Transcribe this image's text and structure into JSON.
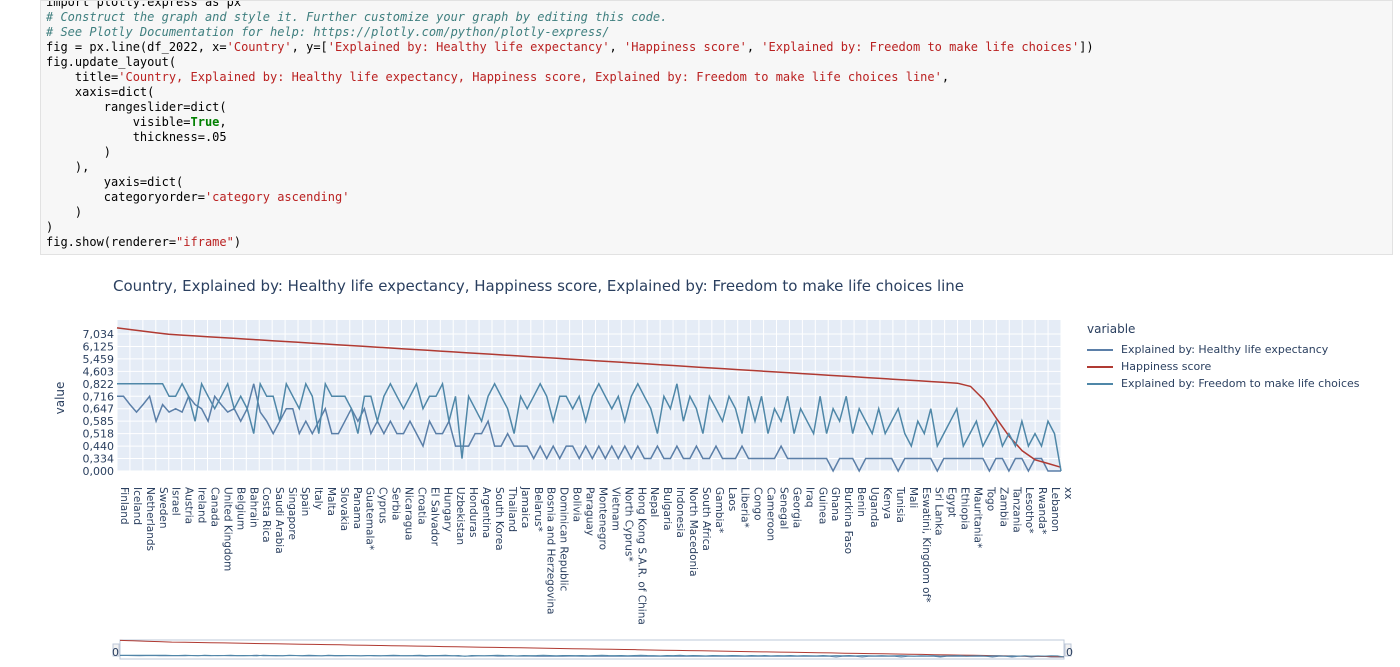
{
  "code_cell": {
    "lines": [
      [
        {
          "cls": "",
          "text": "import plotly.express as px"
        }
      ],
      [
        {
          "cls": "c-com",
          "text": "# Construct the graph and style it. Further customize your graph by editing this code."
        }
      ],
      [
        {
          "cls": "c-com",
          "text": "# See Plotly Documentation for help: https://plotly.com/python/plotly-express/"
        }
      ],
      [
        {
          "cls": "",
          "text": "fig = px.line(df_2022, x="
        },
        {
          "cls": "c-str",
          "text": "'Country'"
        },
        {
          "cls": "",
          "text": ", y=["
        },
        {
          "cls": "c-str",
          "text": "'Explained by: Healthy life expectancy'"
        },
        {
          "cls": "",
          "text": ", "
        },
        {
          "cls": "c-str",
          "text": "'Happiness score'"
        },
        {
          "cls": "",
          "text": ", "
        },
        {
          "cls": "c-str",
          "text": "'Explained by: Freedom to make life choices'"
        },
        {
          "cls": "",
          "text": "])"
        }
      ],
      [
        {
          "cls": "",
          "text": "fig.update_layout("
        }
      ],
      [
        {
          "cls": "",
          "text": "    title="
        },
        {
          "cls": "c-str",
          "text": "'Country, Explained by: Healthy life expectancy, Happiness score, Explained by: Freedom to make life choices line'"
        },
        {
          "cls": "",
          "text": ","
        }
      ],
      [
        {
          "cls": "",
          "text": "    xaxis=dict("
        }
      ],
      [
        {
          "cls": "",
          "text": "        rangeslider=dict("
        }
      ],
      [
        {
          "cls": "",
          "text": "            visible="
        },
        {
          "cls": "c-kw",
          "text": "True"
        },
        {
          "cls": "",
          "text": ","
        }
      ],
      [
        {
          "cls": "",
          "text": "            thickness=.05"
        }
      ],
      [
        {
          "cls": "",
          "text": "        )"
        }
      ],
      [
        {
          "cls": "",
          "text": "    ),"
        }
      ],
      [
        {
          "cls": "",
          "text": "        yaxis=dict("
        }
      ],
      [
        {
          "cls": "",
          "text": "        categoryorder="
        },
        {
          "cls": "c-str",
          "text": "'category ascending'"
        }
      ],
      [
        {
          "cls": "",
          "text": "    )"
        }
      ],
      [
        {
          "cls": "",
          "text": ")"
        }
      ],
      [
        {
          "cls": "",
          "text": "fig.show(renderer="
        },
        {
          "cls": "c-str",
          "text": "\"iframe\""
        },
        {
          "cls": "",
          "text": ")"
        }
      ]
    ]
  },
  "chart_data": {
    "type": "line",
    "title": "Country, Explained by: Healthy life expectancy, Happiness score, Explained by: Freedom to make life choices line",
    "ylabel": "value",
    "xlabel": "",
    "y_axis_type": "category",
    "y_ticks": [
      "0,000",
      "0,334",
      "0,440",
      "0,518",
      "0,585",
      "0,647",
      "0,716",
      "0,822",
      "4,603",
      "5,459",
      "6,125",
      "7,034"
    ],
    "x_tick_labels": [
      "Finland",
      "Iceland",
      "Netherlands",
      "Sweden",
      "Israel",
      "Austria",
      "Ireland",
      "Canada",
      "United Kingdom",
      "Belgium",
      "Bahrain",
      "Costa Rica",
      "Saudi Arabia",
      "Singapore",
      "Spain",
      "Italy",
      "Malta",
      "Slovakia",
      "Panama",
      "Guatemala*",
      "Cyprus",
      "Serbia",
      "Nicaragua",
      "Croatia",
      "El Salvador",
      "Hungary",
      "Uzbekistan",
      "Honduras",
      "Argentina",
      "South Korea",
      "Thailand",
      "Jamaica",
      "Belarus*",
      "Bosnia and Herzegovina",
      "Dominican Republic",
      "Bolivia",
      "Paraguay",
      "Montenegro",
      "Vietnam",
      "North Cyprus*",
      "Hong Kong S.A.R. of China",
      "Nepal",
      "Bulgaria",
      "Indonesia",
      "North Macedonia",
      "South Africa",
      "Gambia*",
      "Laos",
      "Liberia*",
      "Congo",
      "Cameroon",
      "Senegal",
      "Georgia",
      "Iraq",
      "Guinea",
      "Ghana",
      "Burkina Faso",
      "Benin",
      "Uganda",
      "Kenya",
      "Tunisia",
      "Mali",
      "Eswatini, Kingdom of*",
      "Sri Lanka",
      "Egypt",
      "Ethiopia",
      "Mauritania*",
      "Togo",
      "Zambia",
      "Tanzania",
      "Lesotho*",
      "Rwanda*",
      "Lebanon",
      "xx"
    ],
    "series": [
      {
        "name": "Explained by: Healthy life expectancy",
        "color": "#5b7fa8",
        "values": [
          0.716,
          0.716,
          0.67,
          0.63,
          0.67,
          0.716,
          0.585,
          0.67,
          0.63,
          0.647,
          0.63,
          0.716,
          0.67,
          0.647,
          0.585,
          0.716,
          0.67,
          0.63,
          0.647,
          0.585,
          0.647,
          0.822,
          0.63,
          0.585,
          0.518,
          0.585,
          0.647,
          0.647,
          0.518,
          0.585,
          0.518,
          0.585,
          0.647,
          0.518,
          0.518,
          0.585,
          0.647,
          0.585,
          0.647,
          0.518,
          0.585,
          0.518,
          0.585,
          0.518,
          0.518,
          0.585,
          0.518,
          0.44,
          0.585,
          0.518,
          0.518,
          0.585,
          0.44,
          0.44,
          0.44,
          0.518,
          0.518,
          0.585,
          0.44,
          0.44,
          0.518,
          0.44,
          0.44,
          0.44,
          0.334,
          0.44,
          0.334,
          0.44,
          0.334,
          0.44,
          0.44,
          0.334,
          0.44,
          0.334,
          0.44,
          0.334,
          0.44,
          0.334,
          0.44,
          0.334,
          0.44,
          0.334,
          0.334,
          0.44,
          0.334,
          0.334,
          0.44,
          0.334,
          0.334,
          0.44,
          0.334,
          0.334,
          0.44,
          0.334,
          0.334,
          0.334,
          0.44,
          0.334,
          0.334,
          0.334,
          0.334,
          0.334,
          0.44,
          0.334,
          0.334,
          0.334,
          0.334,
          0.334,
          0.334,
          0.334,
          0.0,
          0.334,
          0.334,
          0.334,
          0.0,
          0.334,
          0.334,
          0.334,
          0.334,
          0.334,
          0.0,
          0.334,
          0.334,
          0.334,
          0.334,
          0.334,
          0.0,
          0.334,
          0.334,
          0.334,
          0.334,
          0.334,
          0.334,
          0.334,
          0.0,
          0.334,
          0.334,
          0.0,
          0.334,
          0.334,
          0.0,
          0.334,
          0.334,
          0.0,
          0.0,
          0.0
        ]
      },
      {
        "name": "Happiness score",
        "color": "#b03a32",
        "values": [
          7.8,
          7.6,
          7.4,
          7.2,
          7.0,
          6.9,
          6.8,
          6.7,
          6.6,
          6.5,
          6.4,
          6.3,
          6.2,
          6.1,
          6.0,
          5.9,
          5.8,
          5.7,
          5.6,
          5.5,
          5.4,
          5.3,
          5.2,
          5.1,
          5.0,
          4.9,
          4.8,
          4.7,
          4.6,
          4.5,
          4.4,
          4.3,
          4.2,
          4.1,
          4.0,
          3.9,
          3.8,
          3.7,
          3.6,
          3.5,
          3.4,
          3.3,
          3.2,
          3.1,
          3.0,
          2.9,
          2.8,
          2.7,
          2.6,
          2.5,
          2.4,
          2.3,
          2.2,
          2.1,
          2.0,
          1.9,
          1.8,
          1.7,
          1.6,
          1.5,
          1.4,
          1.3,
          1.2,
          1.1,
          1.0,
          0.9,
          0.8,
          0.7,
          0.6,
          0.5,
          0.4,
          0.3,
          0.2,
          0.1
        ]
      },
      {
        "name": "Explained by: Freedom to make life choices",
        "color": "#4f87a8",
        "values": [
          0.822,
          0.822,
          0.822,
          0.822,
          0.822,
          0.822,
          0.822,
          0.822,
          0.716,
          0.716,
          0.822,
          0.716,
          0.585,
          0.822,
          0.716,
          0.647,
          0.716,
          0.822,
          0.647,
          0.716,
          0.647,
          0.518,
          0.822,
          0.716,
          0.716,
          0.585,
          0.822,
          0.716,
          0.647,
          0.822,
          0.716,
          0.518,
          0.822,
          0.716,
          0.716,
          0.716,
          0.647,
          0.518,
          0.716,
          0.716,
          0.585,
          0.716,
          0.822,
          0.716,
          0.647,
          0.716,
          0.822,
          0.647,
          0.716,
          0.716,
          0.822,
          0.585,
          0.716,
          0.334,
          0.716,
          0.647,
          0.585,
          0.716,
          0.822,
          0.716,
          0.647,
          0.518,
          0.716,
          0.647,
          0.716,
          0.822,
          0.716,
          0.585,
          0.716,
          0.716,
          0.647,
          0.716,
          0.585,
          0.716,
          0.822,
          0.716,
          0.647,
          0.716,
          0.585,
          0.716,
          0.822,
          0.716,
          0.647,
          0.518,
          0.716,
          0.647,
          0.822,
          0.585,
          0.716,
          0.647,
          0.518,
          0.716,
          0.647,
          0.585,
          0.716,
          0.647,
          0.518,
          0.716,
          0.585,
          0.716,
          0.518,
          0.647,
          0.585,
          0.716,
          0.518,
          0.647,
          0.585,
          0.518,
          0.716,
          0.518,
          0.647,
          0.585,
          0.716,
          0.518,
          0.647,
          0.585,
          0.518,
          0.647,
          0.518,
          0.585,
          0.647,
          0.518,
          0.44,
          0.585,
          0.518,
          0.647,
          0.44,
          0.518,
          0.585,
          0.647,
          0.44,
          0.518,
          0.585,
          0.44,
          0.518,
          0.585,
          0.44,
          0.518,
          0.44,
          0.585,
          0.44,
          0.518,
          0.44,
          0.585,
          0.518,
          0.0
        ]
      }
    ],
    "legend": {
      "title": "variable",
      "position": "right"
    },
    "range_slider": {
      "visible": true,
      "left_label": "0",
      "right_label": "0"
    },
    "grid": true
  }
}
